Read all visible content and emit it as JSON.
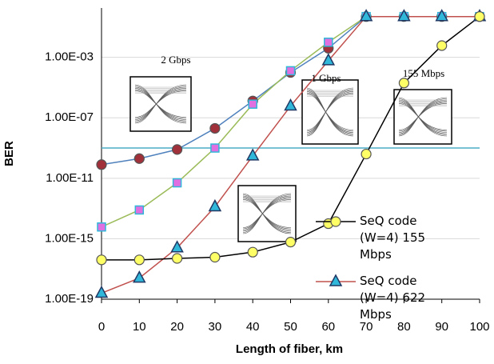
{
  "chart_data": {
    "type": "line",
    "ylog": true,
    "grid": true,
    "xlabel": "Length of fiber, km",
    "ylabel": "BER",
    "x": [
      0,
      10,
      20,
      30,
      40,
      50,
      60,
      70,
      80,
      90,
      100
    ],
    "xlim": [
      0,
      100
    ],
    "xticks": [
      0,
      10,
      20,
      30,
      40,
      50,
      60,
      70,
      80,
      90,
      100
    ],
    "ylim": [
      1e-19,
      1
    ],
    "yticks": [
      {
        "value": 1e-19,
        "label": "1.00E-19"
      },
      {
        "value": 1e-15,
        "label": "1.00E-15"
      },
      {
        "value": 1e-11,
        "label": "1.00E-11"
      },
      {
        "value": 1e-07,
        "label": "1.00E-07"
      },
      {
        "value": 0.001,
        "label": "1.00E-03"
      }
    ],
    "reference_line": {
      "value": 1e-09,
      "color": "#4bacc6"
    },
    "series": [
      {
        "name": "SeQ code (W=4) 155 Mbps",
        "color": "#000000",
        "marker": "circle",
        "marker_color": "#ffff66",
        "values": [
          4e-17,
          4e-17,
          5e-17,
          6e-17,
          1.3e-16,
          6e-16,
          1e-14,
          4e-10,
          2e-05,
          0.006,
          0.5
        ]
      },
      {
        "name": "SeQ code (W=4) 622 Mbps",
        "color": "#c0504d",
        "marker": "triangle",
        "marker_color": "#31b7d9",
        "values": [
          2.5e-19,
          2.5e-18,
          2.5e-16,
          1.3e-13,
          3e-10,
          6e-07,
          0.0006,
          0.5,
          0.5,
          0.5,
          0.5
        ]
      },
      {
        "color": "#9bbb59",
        "marker": "square",
        "marker_color": "#e070e0",
        "values": [
          6e-15,
          8e-14,
          5e-12,
          1e-09,
          8e-07,
          0.00013,
          0.01,
          0.5,
          0.5,
          0.5,
          0.5
        ]
      },
      {
        "color": "#4f81bd",
        "marker": "circle",
        "marker_color": "#a0303a",
        "values": [
          8e-11,
          2e-10,
          8e-10,
          2e-08,
          1.3e-06,
          0.0001,
          0.004,
          0.5,
          0.5,
          0.5,
          0.5
        ]
      }
    ],
    "annotations": [
      "2 Gbps",
      "1 Gbps",
      "155 Mbps"
    ]
  }
}
